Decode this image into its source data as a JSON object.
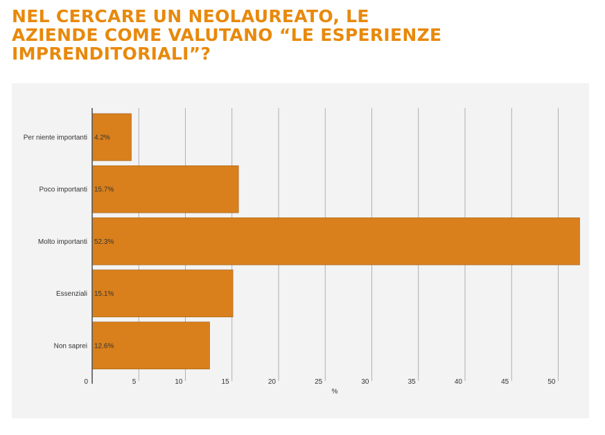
{
  "title": "NEL CERCARE UN NEOLAUREATO, LE\nAZIENDE COME VALUTANO “LE ESPERIENZE\nIMPRENDITORIALI”?",
  "colors": {
    "title": "#e8890c",
    "bar": "#d9801c",
    "bar_stroke": "#9a5a10",
    "grid": "#9e9e9e",
    "axis": "#555555",
    "panel": "#f3f3f3"
  },
  "chart_data": {
    "type": "bar",
    "orientation": "horizontal",
    "categories": [
      "Per niente importanti",
      "Poco importanti",
      "Molto importanti",
      "Essenziali",
      "Non saprei"
    ],
    "values": [
      4.2,
      15.7,
      52.3,
      15.1,
      12.6
    ],
    "data_labels": [
      "4.2%",
      "15.7%",
      "52.3%",
      "15.1%",
      "12.6%"
    ],
    "xlabel": "%",
    "ylabel": "",
    "xlim": [
      0,
      52.3
    ],
    "xticks": [
      0,
      5,
      10,
      15,
      20,
      25,
      30,
      35,
      40,
      45,
      50
    ],
    "grid": true,
    "legend": "none"
  }
}
